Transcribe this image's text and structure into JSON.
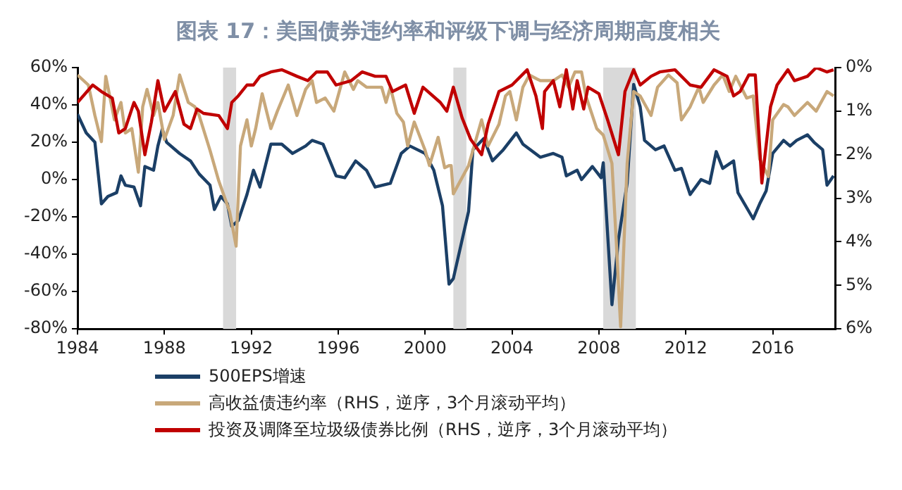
{
  "chart_data": {
    "type": "line",
    "title": "图表 17：美国债券违约率和评级下调与经济周期高度相关",
    "xlim": [
      1984,
      2018.9
    ],
    "xticks": [
      1984,
      1988,
      1992,
      1996,
      2000,
      2004,
      2008,
      2012,
      2016
    ],
    "ylim": [
      -80,
      60
    ],
    "yticks": [
      {
        "value": -80,
        "label": "-80%"
      },
      {
        "value": -60,
        "label": "-60%"
      },
      {
        "value": -40,
        "label": "-40%"
      },
      {
        "value": -20,
        "label": "-20%"
      },
      {
        "value": 0,
        "label": "0%"
      },
      {
        "value": 20,
        "label": "20%"
      },
      {
        "value": 40,
        "label": "40%"
      },
      {
        "value": 60,
        "label": "60%"
      }
    ],
    "y2lim": [
      6,
      0
    ],
    "y2ticks": [
      {
        "value": 0,
        "label": "0%"
      },
      {
        "value": 1,
        "label": "1%"
      },
      {
        "value": 2,
        "label": "2%"
      },
      {
        "value": 3,
        "label": "3%"
      },
      {
        "value": 4,
        "label": "4%"
      },
      {
        "value": 5,
        "label": "5%"
      },
      {
        "value": 6,
        "label": "6%"
      }
    ],
    "grid": false,
    "legend": "bottom left",
    "marker": "none",
    "line_style": "solid",
    "bands": [
      {
        "axis": "x",
        "from": 1990.7,
        "to": 1991.3,
        "color": "#d9d9d9"
      },
      {
        "axis": "x",
        "from": 2001.3,
        "to": 2001.9,
        "color": "#d9d9d9"
      },
      {
        "axis": "x",
        "from": 2008.2,
        "to": 2009.7,
        "color": "#d9d9d9"
      }
    ],
    "series": [
      {
        "name": "500EPS增速",
        "color": "#1b3f66",
        "x": [
          1984.0,
          1984.4,
          1984.8,
          1985.1,
          1985.4,
          1985.8,
          1986.0,
          1986.2,
          1986.6,
          1986.9,
          1987.1,
          1987.5,
          1987.7,
          1987.9,
          1988.1,
          1988.7,
          1989.2,
          1989.6,
          1990.1,
          1990.3,
          1990.6,
          1990.9,
          1991.1,
          1991.4,
          1991.8,
          1992.1,
          1992.4,
          1992.9,
          1993.4,
          1993.9,
          1994.5,
          1994.8,
          1995.3,
          1995.9,
          1996.3,
          1996.8,
          1997.3,
          1997.7,
          1998.4,
          1998.9,
          1999.3,
          2000.0,
          2000.4,
          2000.8,
          2001.1,
          2001.3,
          2002.0,
          2002.2,
          2002.7,
          2003.1,
          2003.6,
          2004.2,
          2004.5,
          2005.3,
          2005.9,
          2006.3,
          2006.5,
          2007.0,
          2007.2,
          2007.7,
          2008.1,
          2008.2,
          2008.6,
          2008.9,
          2009.3,
          2009.6,
          2009.9,
          2010.1,
          2010.6,
          2011.0,
          2011.5,
          2011.8,
          2012.2,
          2012.7,
          2013.1,
          2013.4,
          2013.7,
          2014.2,
          2014.4,
          2015.1,
          2015.4,
          2015.7,
          2016.0,
          2016.5,
          2016.8,
          2017.1,
          2017.6,
          2017.9,
          2018.3,
          2018.5,
          2018.8
        ],
        "values": [
          35,
          25,
          20,
          -13,
          -9,
          -7,
          2,
          -3,
          -4,
          -14,
          7,
          5,
          18,
          27,
          20,
          14,
          10,
          3,
          -3,
          -16,
          -9,
          -13,
          -25,
          -22,
          -8,
          5,
          -4,
          19,
          19,
          14,
          18,
          21,
          19,
          2,
          1,
          10,
          5,
          -4,
          -2,
          14,
          18,
          14,
          5,
          -14,
          -56,
          -53,
          -17,
          16,
          22,
          10,
          16,
          25,
          19,
          12,
          14,
          12,
          2,
          5,
          0,
          7,
          1,
          9,
          -67,
          -32,
          -2,
          51,
          39,
          21,
          16,
          18,
          5,
          6,
          -8,
          0,
          -2,
          15,
          6,
          10,
          -7,
          -21,
          -13,
          -6,
          14,
          21,
          18,
          21,
          24,
          20,
          16,
          -3,
          2
        ]
      },
      {
        "name": "高收益债违约率（RHS，逆序，3个月滚动平均）",
        "color": "#c8a87a",
        "axis": "y2",
        "x": [
          1984.0,
          1984.5,
          1984.8,
          1985.1,
          1985.3,
          1985.7,
          1986.0,
          1986.2,
          1986.5,
          1986.8,
          1987.0,
          1987.2,
          1987.5,
          1987.7,
          1988.0,
          1988.4,
          1988.7,
          1989.1,
          1989.4,
          1989.6,
          1990.1,
          1990.5,
          1991.0,
          1991.3,
          1991.5,
          1991.8,
          1992.0,
          1992.2,
          1992.5,
          1992.9,
          1993.2,
          1993.7,
          1994.1,
          1994.5,
          1994.8,
          1995.0,
          1995.4,
          1995.8,
          1996.3,
          1996.7,
          1996.9,
          1997.3,
          1998.0,
          1998.2,
          1998.4,
          1998.7,
          1999.0,
          1999.2,
          1999.5,
          2000.0,
          2000.2,
          2000.6,
          2000.9,
          2001.1,
          2001.2,
          2001.3,
          2002.0,
          2002.2,
          2002.6,
          2002.9,
          2003.4,
          2003.7,
          2003.9,
          2004.2,
          2004.5,
          2004.8,
          2005.3,
          2005.9,
          2006.3,
          2006.6,
          2006.9,
          2007.2,
          2007.4,
          2007.9,
          2008.2,
          2008.6,
          2008.8,
          2009.0,
          2009.3,
          2009.6,
          2009.9,
          2010.4,
          2010.7,
          2011.2,
          2011.6,
          2011.8,
          2012.2,
          2012.6,
          2012.8,
          2013.3,
          2013.7,
          2014.0,
          2014.3,
          2014.8,
          2015.1,
          2015.4,
          2015.8,
          2016.0,
          2016.5,
          2016.7,
          2017.0,
          2017.6,
          2018.0,
          2018.5,
          2018.8
        ],
        "values": [
          0.17,
          0.4,
          1.1,
          1.7,
          0.2,
          1.2,
          0.8,
          1.5,
          1.4,
          2.4,
          0.9,
          0.5,
          1.1,
          0.8,
          1.65,
          1.1,
          0.17,
          0.8,
          0.9,
          1.1,
          1.9,
          2.6,
          3.3,
          4.1,
          1.8,
          1.2,
          1.8,
          1.4,
          0.6,
          1.4,
          1.0,
          0.4,
          1.1,
          0.5,
          0.3,
          0.8,
          0.7,
          1.0,
          0.1,
          0.5,
          0.3,
          0.45,
          0.45,
          0.8,
          0.45,
          1.05,
          1.25,
          1.8,
          1.25,
          1.9,
          2.25,
          1.6,
          2.3,
          2.25,
          2.25,
          2.9,
          2.25,
          1.9,
          1.2,
          1.8,
          1.3,
          0.65,
          0.55,
          1.2,
          0.45,
          0.17,
          0.3,
          0.3,
          0.17,
          0.45,
          0.1,
          0.1,
          0.65,
          1.4,
          1.55,
          2.2,
          4.0,
          5.95,
          2.2,
          0.55,
          0.65,
          1.1,
          0.45,
          0.17,
          0.35,
          1.2,
          0.9,
          0.45,
          0.8,
          0.4,
          0.17,
          0.55,
          0.2,
          0.7,
          0.65,
          2.1,
          2.5,
          1.2,
          0.85,
          0.9,
          1.1,
          0.8,
          1.0,
          0.55,
          0.65
        ]
      },
      {
        "name": "投资及调降至垃圾级债券比例（RHS，逆序，3个月滚动平均）",
        "color": "#c00000",
        "axis": "y2",
        "x": [
          1984.0,
          1984.7,
          1985.1,
          1985.6,
          1985.9,
          1986.2,
          1986.6,
          1986.8,
          1987.1,
          1987.4,
          1987.7,
          1988.0,
          1988.5,
          1988.9,
          1989.2,
          1989.5,
          1989.8,
          1990.5,
          1990.9,
          1991.1,
          1991.4,
          1991.8,
          1992.1,
          1992.4,
          1992.9,
          1993.4,
          1994.1,
          1994.6,
          1995.0,
          1995.5,
          1995.9,
          1996.6,
          1997.1,
          1997.7,
          1998.2,
          1998.5,
          1999.1,
          1999.5,
          1999.9,
          2000.7,
          2001.0,
          2001.3,
          2001.7,
          2002.1,
          2002.6,
          2002.9,
          2003.4,
          2004.0,
          2004.7,
          2005.1,
          2005.4,
          2005.5,
          2005.9,
          2006.2,
          2006.5,
          2006.8,
          2007.0,
          2007.3,
          2007.5,
          2008.0,
          2008.4,
          2008.9,
          2009.2,
          2009.6,
          2009.9,
          2010.4,
          2010.8,
          2011.5,
          2012.2,
          2012.7,
          2013.3,
          2013.9,
          2014.2,
          2014.5,
          2014.9,
          2015.2,
          2015.5,
          2015.9,
          2016.2,
          2016.7,
          2017.0,
          2017.6,
          2018.0,
          2018.5,
          2018.8
        ],
        "values": [
          0.8,
          0.4,
          0.55,
          0.7,
          1.5,
          1.4,
          0.8,
          1.0,
          2.0,
          1.25,
          0.3,
          1.0,
          0.55,
          1.3,
          1.4,
          0.95,
          1.05,
          1.1,
          1.4,
          0.8,
          0.65,
          0.4,
          0.4,
          0.2,
          0.1,
          0.05,
          0.2,
          0.3,
          0.1,
          0.1,
          0.4,
          0.3,
          0.1,
          0.2,
          0.2,
          0.55,
          0.4,
          1.05,
          0.45,
          0.8,
          1.0,
          0.45,
          1.15,
          1.65,
          2.0,
          1.3,
          0.55,
          0.4,
          0.05,
          0.65,
          1.4,
          0.55,
          0.3,
          0.9,
          0.05,
          0.95,
          0.3,
          0.95,
          0.45,
          0.6,
          1.2,
          2.0,
          0.55,
          0.05,
          0.4,
          0.2,
          0.1,
          0.05,
          0.4,
          0.45,
          0.05,
          0.2,
          0.65,
          0.55,
          0.17,
          0.17,
          2.65,
          0.9,
          0.4,
          0.05,
          0.3,
          0.2,
          0,
          0.1,
          0.05
        ]
      }
    ]
  }
}
